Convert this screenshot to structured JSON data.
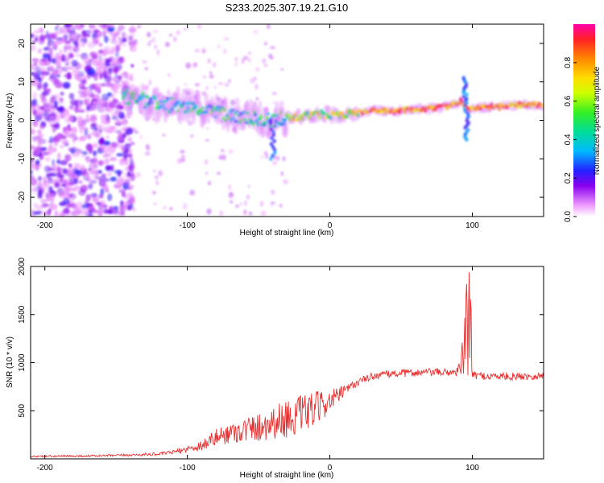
{
  "chart_data": [
    {
      "type": "heatmap",
      "title": "S233.2025.307.19.21.G10",
      "xlabel": "Height of straight line (km)",
      "ylabel": "Frequency (Hz)",
      "xlim": [
        -210,
        150
      ],
      "ylim": [
        -25,
        25
      ],
      "xticks": [
        -200,
        -100,
        0,
        100
      ],
      "yticks": [
        -20,
        -10,
        0,
        10,
        20
      ],
      "colorbar": {
        "label": "Normalized spectral amplitude",
        "range": [
          0.0,
          1.0
        ],
        "ticks": [
          0.0,
          0.2,
          0.4,
          0.6,
          0.8
        ],
        "colors": [
          "#ffffff",
          "#ee99ff",
          "#8800ee",
          "#2222ff",
          "#00bbff",
          "#00dd99",
          "#33ee22",
          "#ccff00",
          "#ffdd00",
          "#ff8800",
          "#ff2222",
          "#ff00aa"
        ]
      },
      "ridge": {
        "description_free_series": "dominant frequency vs height",
        "x": [
          -140,
          -130,
          -120,
          -110,
          -100,
          -90,
          -80,
          -70,
          -60,
          -50,
          -40,
          -30,
          -20,
          -10,
          0,
          10,
          20,
          30,
          40,
          50,
          60,
          70,
          80,
          88,
          92,
          96,
          100,
          110,
          120,
          130,
          140,
          150
        ],
        "y": [
          6,
          5,
          4,
          4,
          3.5,
          3,
          2,
          1.5,
          1,
          0.5,
          0,
          0.5,
          1,
          1.5,
          1.5,
          1.5,
          2,
          2.5,
          2.5,
          2.5,
          3,
          3,
          3.5,
          4,
          5,
          3,
          3,
          3.5,
          3.5,
          4,
          4,
          4
        ]
      }
    },
    {
      "type": "line",
      "xlabel": "Height of straight line (km)",
      "ylabel": "SNR (10 * v/v)",
      "xlim": [
        -210,
        150
      ],
      "ylim": [
        0,
        2000
      ],
      "xticks": [
        -200,
        -100,
        0,
        100
      ],
      "yticks": [
        500,
        1000,
        1500,
        2000
      ],
      "series": [
        {
          "name": "SNR",
          "color": "#e83030",
          "envelope_x": [
            -210,
            -180,
            -150,
            -120,
            -110,
            -100,
            -90,
            -80,
            -70,
            -60,
            -50,
            -40,
            -30,
            -20,
            -10,
            0,
            10,
            20,
            30,
            40,
            50,
            60,
            70,
            80,
            88,
            92,
            95,
            98,
            100,
            110,
            120,
            130,
            140,
            150
          ],
          "envelope_y": [
            25,
            28,
            35,
            50,
            70,
            100,
            140,
            220,
            270,
            300,
            330,
            380,
            420,
            460,
            520,
            600,
            700,
            800,
            860,
            880,
            890,
            895,
            900,
            900,
            900,
            950,
            1200,
            1700,
            870,
            860,
            860,
            855,
            860,
            860
          ],
          "noise": [
            10,
            10,
            12,
            15,
            20,
            35,
            60,
            90,
            110,
            130,
            150,
            180,
            200,
            200,
            180,
            120,
            60,
            40,
            40,
            40,
            40,
            40,
            40,
            40,
            40,
            80,
            500,
            900,
            40,
            40,
            40,
            40,
            40,
            40
          ]
        }
      ]
    }
  ]
}
